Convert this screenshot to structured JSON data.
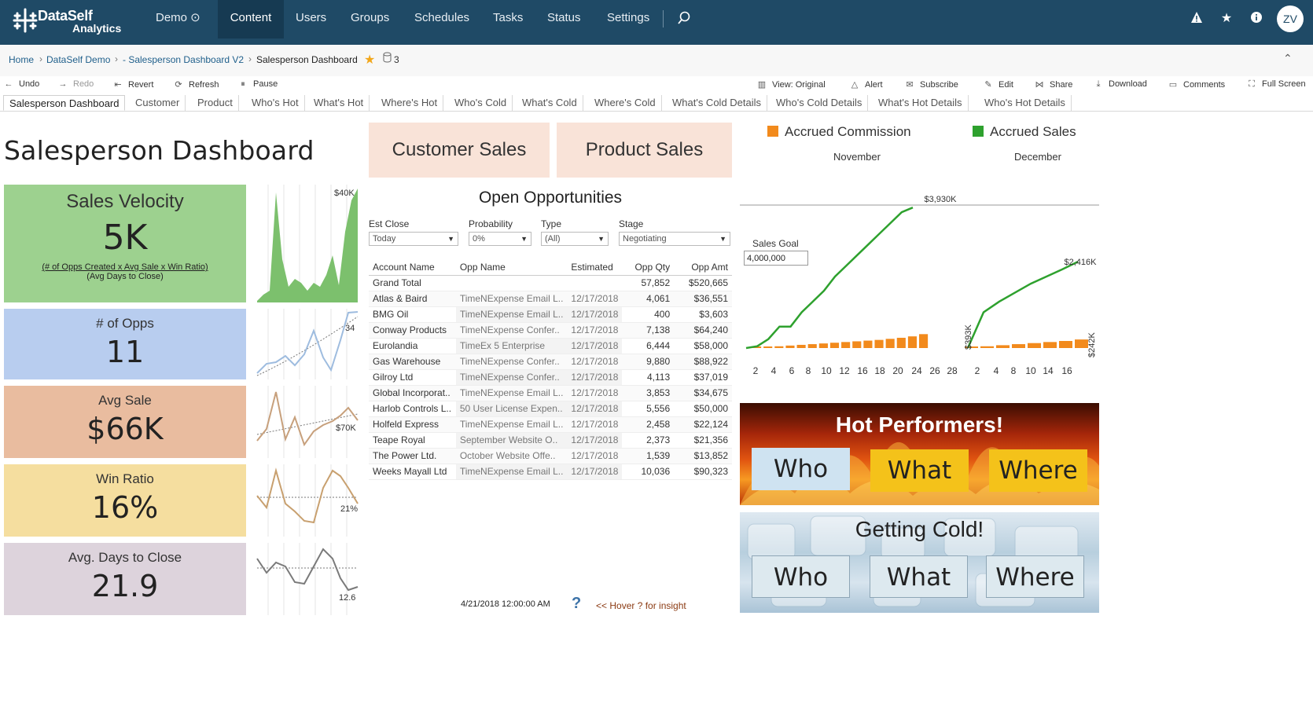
{
  "app": {
    "logo_line1": "DataSelf",
    "logo_line2": "Analytics",
    "nav": [
      "Demo ⊙",
      "Content",
      "Users",
      "Groups",
      "Schedules",
      "Tasks",
      "Status",
      "Settings"
    ],
    "avatar": "ZV"
  },
  "breadcrumb": {
    "items": [
      "Home",
      "DataSelf Demo",
      "- Salesperson Dashboard V2",
      "Salesperson Dashboard"
    ],
    "count": "3"
  },
  "toolbar": {
    "left": [
      "Undo",
      "Redo",
      "Revert",
      "Refresh",
      "Pause"
    ],
    "right": [
      "View: Original",
      "Alert",
      "Subscribe",
      "Edit",
      "Share",
      "Download",
      "Comments",
      "Full Screen"
    ]
  },
  "tabs": [
    "Salesperson Dashboard",
    "Customer",
    "Product",
    "Who's Hot",
    "What's Hot",
    "Where's Hot",
    "Who's Cold",
    "What's Cold",
    "Where's Cold",
    "What's Cold Details",
    "Who's Cold Details",
    "What's Hot Details",
    "Who's Hot Details"
  ],
  "dashboard": {
    "title": "Salesperson Dashboard",
    "kpis": {
      "velocity": {
        "label": "Sales Velocity",
        "value": "5K",
        "formula": "(# of Opps Created x Avg Sale x Win Ratio)",
        "formula2": "(Avg Days to Close)"
      },
      "opps": {
        "label": "# of Opps",
        "value": "11"
      },
      "avg": {
        "label": "Avg Sale",
        "value": "$66K"
      },
      "win": {
        "label": "Win Ratio",
        "value": "16%"
      },
      "days": {
        "label": "Avg. Days to Close",
        "value": "21.9"
      }
    },
    "sparks": {
      "velocity_label": "$40K",
      "opps_label": "34",
      "avg_label": "$70K",
      "win_label": "21%",
      "days_label": "12.6"
    },
    "buttons": {
      "customer": "Customer Sales",
      "product": "Product Sales"
    },
    "opportunities": {
      "title": "Open Opportunities",
      "filters": [
        {
          "label": "Est Close",
          "value": "Today"
        },
        {
          "label": "Probability",
          "value": "0%"
        },
        {
          "label": "Type",
          "value": "(All)"
        },
        {
          "label": "Stage",
          "value": "Negotiating"
        }
      ],
      "columns": [
        "Account Name",
        "Opp Name",
        "Estimated",
        "Opp Qty",
        "Opp Amt"
      ],
      "rows": [
        [
          "Grand Total",
          "",
          "",
          "57,852",
          "$520,665"
        ],
        [
          "Atlas & Baird",
          "TimeNExpense Email L..",
          "12/17/2018",
          "4,061",
          "$36,551"
        ],
        [
          "BMG Oil",
          "TimeNExpense Email L..",
          "12/17/2018",
          "400",
          "$3,603"
        ],
        [
          "Conway Products",
          "TimeNExpense Confer..",
          "12/17/2018",
          "7,138",
          "$64,240"
        ],
        [
          "Eurolandia",
          "TimeEx 5 Enterprise",
          "12/17/2018",
          "6,444",
          "$58,000"
        ],
        [
          "Gas Warehouse",
          "TimeNExpense Confer..",
          "12/17/2018",
          "9,880",
          "$88,922"
        ],
        [
          "Gilroy Ltd",
          "TimeNExpense Confer..",
          "12/17/2018",
          "4,113",
          "$37,019"
        ],
        [
          "Global Incorporat..",
          "TimeNExpense Email L..",
          "12/17/2018",
          "3,853",
          "$34,675"
        ],
        [
          "Harlob Controls L..",
          "50 User License Expen..",
          "12/17/2018",
          "5,556",
          "$50,000"
        ],
        [
          "Holfeld Express",
          "TimeNExpense Email L..",
          "12/17/2018",
          "2,458",
          "$22,124"
        ],
        [
          "Teape Royal",
          "September Website O..",
          "12/17/2018",
          "2,373",
          "$21,356"
        ],
        [
          "The Power Ltd.",
          "October Website Offe..",
          "12/17/2018",
          "1,539",
          "$13,852"
        ],
        [
          "Weeks Mayall Ltd",
          "TimeNExpense Email L..",
          "12/17/2018",
          "10,036",
          "$90,323"
        ]
      ]
    },
    "timestamp": "4/21/2018 12:00:00 AM",
    "hover_text": "<< Hover ? for insight",
    "commission": {
      "legend": [
        "Accrued Commission",
        "Accrued Sales"
      ],
      "legend_colors": [
        "#f28a1c",
        "#2ea12e"
      ],
      "months": [
        "November",
        "December"
      ],
      "sales_goal_label": "Sales Goal",
      "sales_goal_value": "4,000,000",
      "annotations": [
        "$3,930K",
        "$2,416K",
        "$393K",
        "$242K"
      ],
      "x_ticks": [
        "2",
        "4",
        "6",
        "8",
        "10",
        "12",
        "16",
        "18",
        "20",
        "24",
        "26",
        "28",
        "2",
        "4",
        "8",
        "10",
        "14",
        "16"
      ]
    },
    "hot": {
      "title": "Hot Performers!",
      "buttons": [
        "Who",
        "What",
        "Where"
      ]
    },
    "cold": {
      "title": "Getting Cold!",
      "buttons": [
        "Who",
        "What",
        "Where"
      ]
    }
  },
  "chart_data": [
    {
      "type": "line",
      "title": "",
      "series": [
        {
          "name": "Accrued Sales",
          "period": "November",
          "values": [
            0,
            0.05,
            0.25,
            0.6,
            0.6,
            1.0,
            1.3,
            1.6,
            2.0,
            2.3,
            2.6,
            2.9,
            3.2,
            3.5,
            3.8,
            3.93
          ]
        },
        {
          "name": "Accrued Sales",
          "period": "December",
          "values": [
            0,
            1.0,
            1.3,
            1.55,
            1.8,
            2.0,
            2.2,
            2.416
          ]
        },
        {
          "name": "Accrued Commission",
          "period": "November",
          "values": [
            0.02,
            0.03,
            0.05,
            0.07,
            0.09,
            0.11,
            0.13,
            0.15,
            0.17,
            0.19,
            0.21,
            0.23,
            0.26,
            0.29,
            0.33,
            0.393
          ]
        },
        {
          "name": "Accrued Commission",
          "period": "December",
          "values": [
            0.02,
            0.05,
            0.08,
            0.11,
            0.14,
            0.17,
            0.2,
            0.242
          ]
        }
      ],
      "unit": "$M"
    }
  ]
}
